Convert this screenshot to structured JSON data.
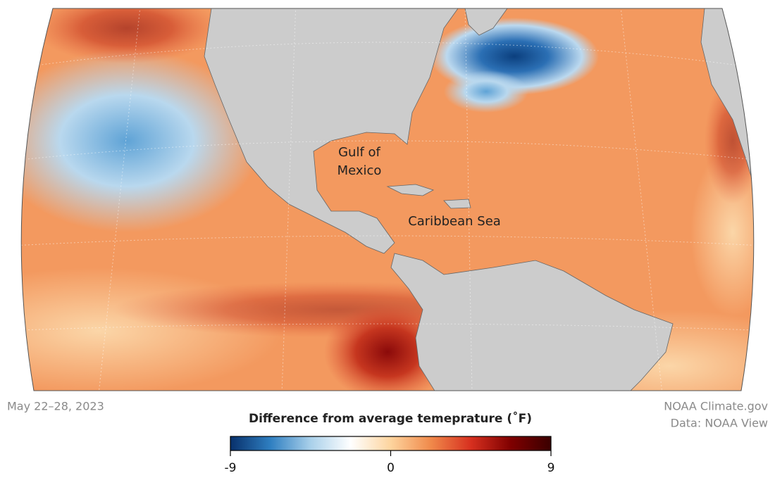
{
  "map": {
    "labels": [
      {
        "lines": [
          "Gulf of",
          "Mexico"
        ]
      },
      {
        "lines": [
          "Caribbean Sea"
        ]
      }
    ],
    "date": "May 22–28, 2023",
    "credits": [
      "NOAA Climate.gov",
      "Data: NOAA View"
    ]
  },
  "legend": {
    "title": "Difference from average temeprature (˚F)",
    "lim": [
      -9,
      9
    ],
    "ticks": [
      -9,
      0,
      9
    ],
    "colors": [
      "#08306b",
      "#2f7fc1",
      "#a9d0ea",
      "#ffffff",
      "#fdd49e",
      "#f08a4b",
      "#d7301f",
      "#7f0000",
      "#3a0000"
    ]
  }
}
